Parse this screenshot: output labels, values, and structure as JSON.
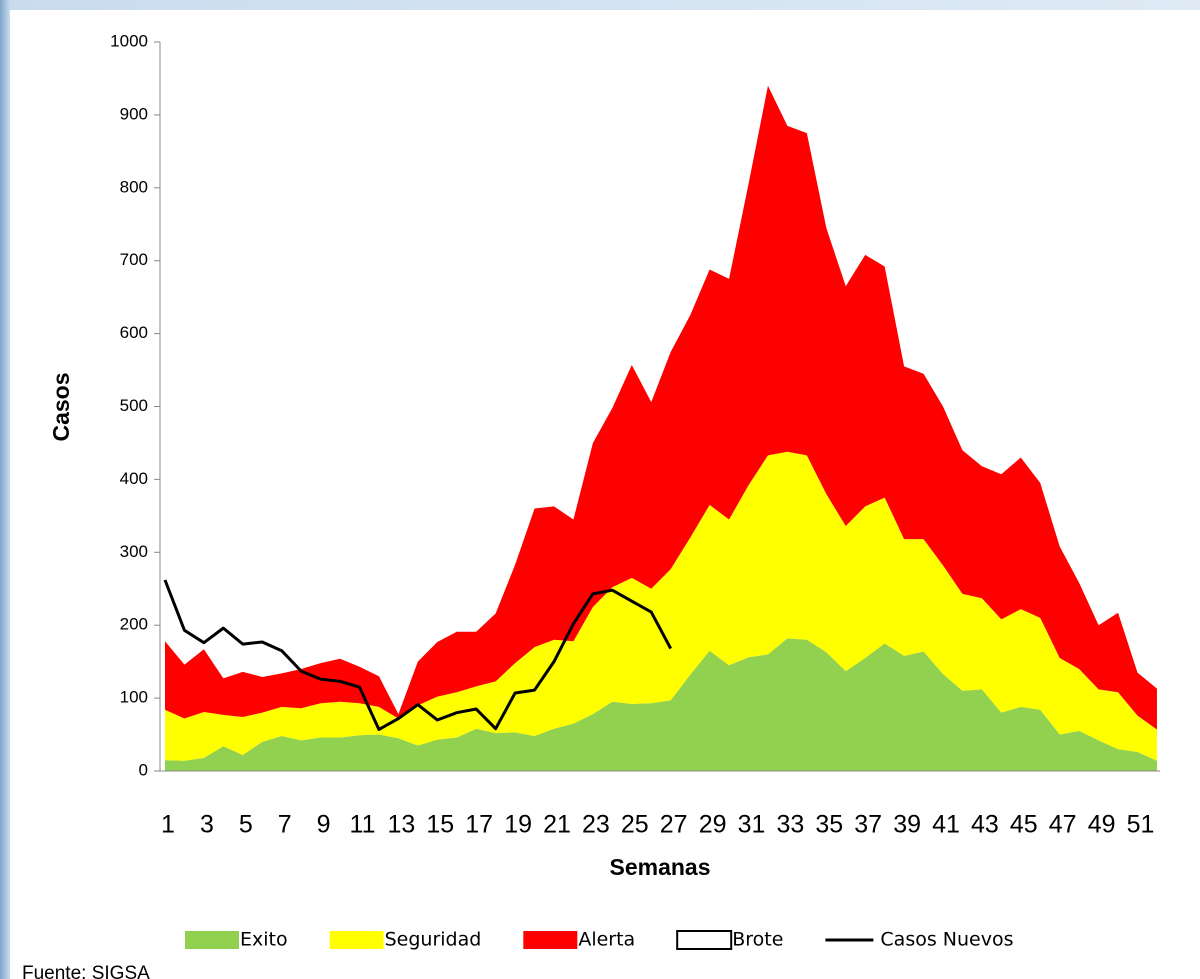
{
  "chart_data": {
    "type": "stacked-area",
    "x_label": "Semanas",
    "y_label": "Casos",
    "source": "Fuente: SIGSA",
    "categories": [
      "1",
      null,
      "3",
      null,
      "5",
      null,
      "7",
      null,
      "9",
      null,
      "11",
      null,
      "13",
      null,
      "15",
      null,
      "17",
      null,
      "19",
      null,
      "21",
      null,
      "23",
      null,
      "25",
      null,
      "27",
      null,
      "29",
      null,
      "31",
      null,
      "33",
      null,
      "35",
      null,
      "37",
      null,
      "39",
      null,
      "41",
      null,
      "43",
      null,
      "45",
      null,
      "47",
      null,
      "49",
      null,
      "51",
      null
    ],
    "ylim": [
      0,
      1000
    ],
    "yticks": [
      0,
      100,
      200,
      300,
      400,
      500,
      600,
      700,
      800,
      900,
      1000
    ],
    "grid": false,
    "legend": "bottom",
    "series": [
      {
        "name": "Exito",
        "color": "#92d050",
        "values": [
          15,
          14,
          18,
          34,
          22,
          40,
          48,
          42,
          46,
          46,
          49,
          50,
          45,
          35,
          43,
          46,
          58,
          52,
          53,
          48,
          58,
          65,
          78,
          95,
          92,
          93,
          97,
          132,
          165,
          145,
          156,
          160,
          182,
          180,
          163,
          137,
          155,
          175,
          158,
          164,
          133,
          110,
          112,
          80,
          88,
          84,
          50,
          55,
          42,
          30,
          26,
          14
        ]
      },
      {
        "name": "Seguridad",
        "color": "#ffff00",
        "values": [
          69,
          58,
          63,
          43,
          52,
          40,
          40,
          44,
          47,
          49,
          44,
          38,
          27,
          55,
          59,
          62,
          58,
          71,
          95,
          122,
          122,
          113,
          147,
          157,
          173,
          157,
          180,
          188,
          200,
          200,
          236,
          273,
          256,
          253,
          217,
          199,
          208,
          200,
          160,
          154,
          149,
          133,
          125,
          128,
          134,
          126,
          105,
          85,
          70,
          78,
          50,
          43
        ]
      },
      {
        "name": "Alerta",
        "color": "#ff0000",
        "values": [
          94,
          74,
          86,
          50,
          62,
          49,
          46,
          54,
          55,
          59,
          50,
          42,
          6,
          60,
          75,
          83,
          75,
          93,
          135,
          190,
          183,
          167,
          225,
          246,
          292,
          256,
          298,
          305,
          323,
          330,
          413,
          507,
          447,
          442,
          365,
          329,
          345,
          317,
          237,
          227,
          218,
          197,
          181,
          199,
          208,
          185,
          153,
          118,
          88,
          109,
          59,
          56
        ]
      },
      {
        "name": "Brote",
        "color": "#ffffff"
      },
      {
        "name": "Casos Nuevos",
        "type": "line",
        "color": "#000000",
        "values": [
          262,
          193,
          176,
          196,
          174,
          177,
          165,
          137,
          126,
          123,
          115,
          57,
          72,
          91,
          70,
          80,
          85,
          58,
          107,
          111,
          150,
          202,
          243,
          248,
          233,
          218,
          168,
          null,
          null,
          null,
          null,
          null,
          null,
          null,
          null,
          null,
          null,
          null,
          null,
          null,
          null,
          null,
          null,
          null,
          null,
          null,
          null,
          null,
          null,
          null,
          null,
          null
        ]
      }
    ]
  }
}
